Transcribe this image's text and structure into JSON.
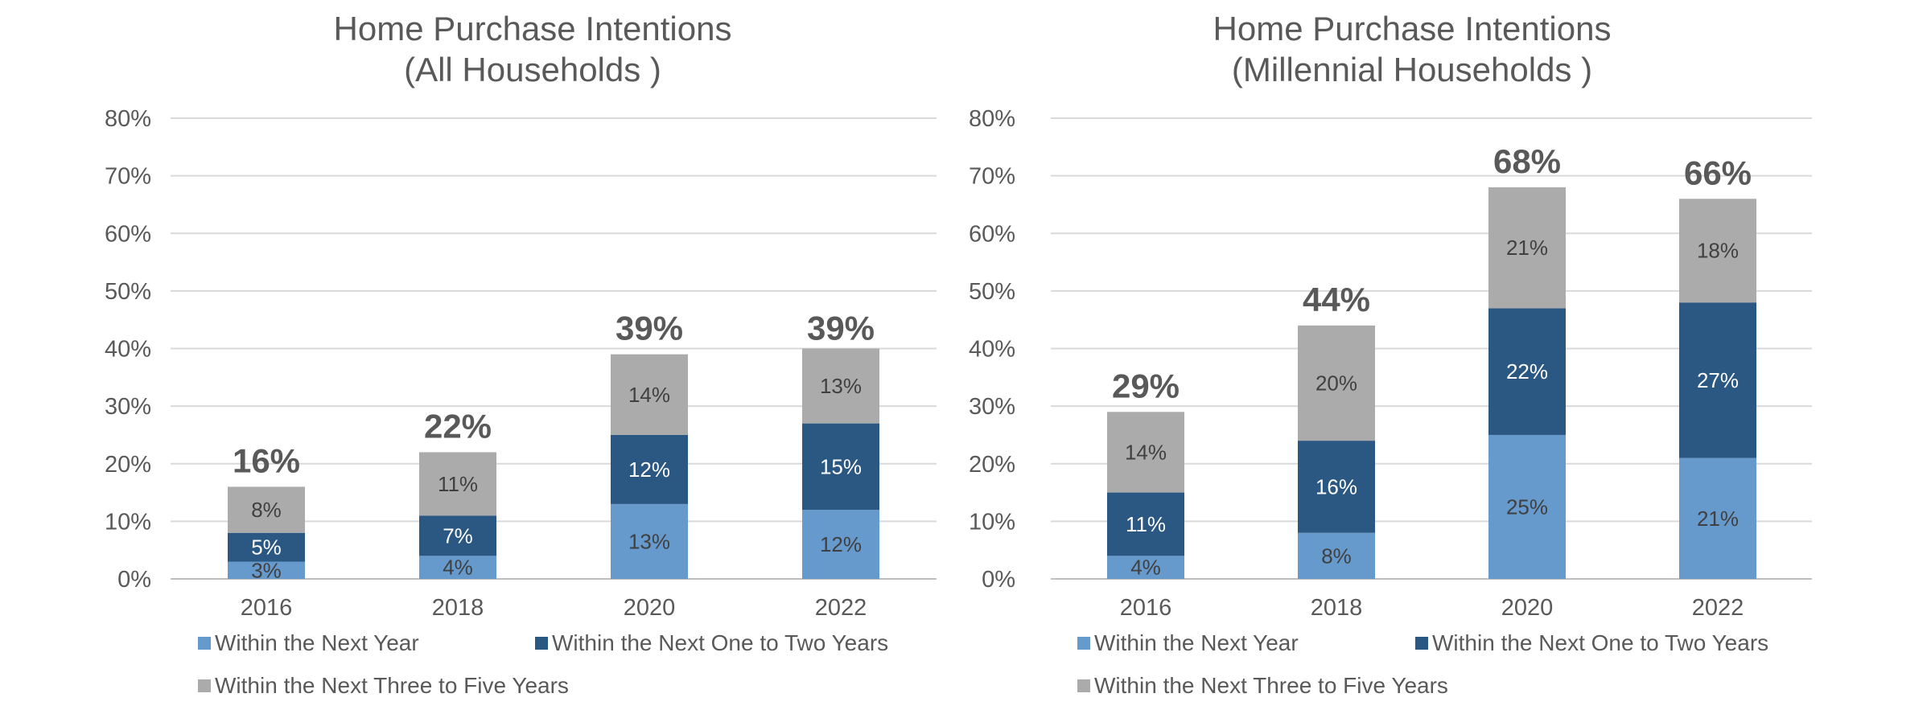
{
  "chart_data": [
    {
      "type": "bar",
      "stacked": true,
      "title_lines": [
        "Home Purchase Intentions",
        "(All Households )"
      ],
      "categories": [
        "2016",
        "2018",
        "2020",
        "2022"
      ],
      "ylim": [
        0,
        80
      ],
      "yticks": [
        "0%",
        "10%",
        "20%",
        "30%",
        "40%",
        "50%",
        "60%",
        "70%",
        "80%"
      ],
      "grid": true,
      "legend_position": "bottom",
      "series": [
        {
          "name": "Within the Next Year",
          "values": [
            3,
            4,
            13,
            12
          ],
          "labels": [
            "3%",
            "4%",
            "13%",
            "12%"
          ],
          "color": "#6699CC",
          "label_color": "#404040"
        },
        {
          "name": "Within the Next One to Two Years",
          "values": [
            5,
            7,
            12,
            15
          ],
          "labels": [
            "5%",
            "7%",
            "12%",
            "15%"
          ],
          "color": "#2B5783",
          "label_color": "#FFFFFF"
        },
        {
          "name": "Within the Next Three to Five Years",
          "values": [
            8,
            11,
            14,
            13
          ],
          "labels": [
            "8%",
            "11%",
            "14%",
            "13%"
          ],
          "color": "#ABABAB",
          "label_color": "#404040"
        }
      ],
      "totals": [
        16,
        22,
        39,
        39
      ],
      "total_labels": [
        "16%",
        "22%",
        "39%",
        "39%"
      ]
    },
    {
      "type": "bar",
      "stacked": true,
      "title_lines": [
        "Home Purchase Intentions",
        "(Millennial Households )"
      ],
      "categories": [
        "2016",
        "2018",
        "2020",
        "2022"
      ],
      "ylim": [
        0,
        80
      ],
      "yticks": [
        "0%",
        "10%",
        "20%",
        "30%",
        "40%",
        "50%",
        "60%",
        "70%",
        "80%"
      ],
      "grid": true,
      "legend_position": "bottom",
      "series": [
        {
          "name": "Within the Next Year",
          "values": [
            4,
            8,
            25,
            21
          ],
          "labels": [
            "4%",
            "8%",
            "25%",
            "21%"
          ],
          "color": "#6699CC",
          "label_color": "#404040"
        },
        {
          "name": "Within the Next One to Two Years",
          "values": [
            11,
            16,
            22,
            27
          ],
          "labels": [
            "11%",
            "16%",
            "22%",
            "27%"
          ],
          "color": "#2B5783",
          "label_color": "#FFFFFF"
        },
        {
          "name": "Within the Next Three to Five Years",
          "values": [
            14,
            20,
            21,
            18
          ],
          "labels": [
            "14%",
            "20%",
            "21%",
            "18%"
          ],
          "color": "#ABABAB",
          "label_color": "#404040"
        }
      ],
      "totals": [
        29,
        44,
        68,
        66
      ],
      "total_labels": [
        "29%",
        "44%",
        "68%",
        "66%"
      ]
    }
  ]
}
